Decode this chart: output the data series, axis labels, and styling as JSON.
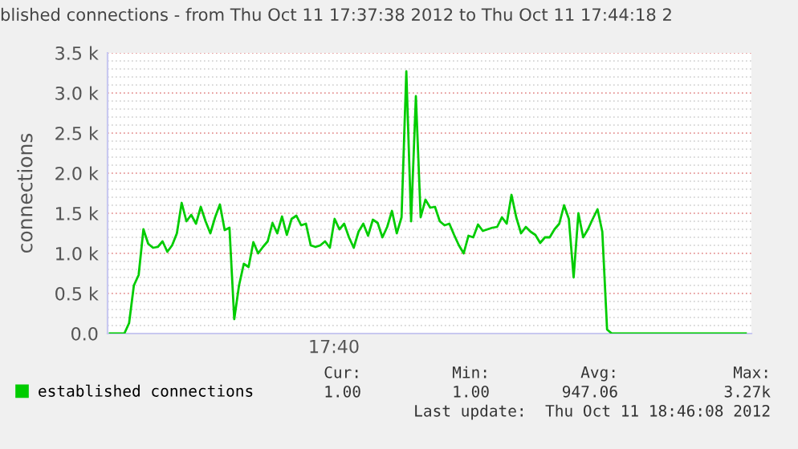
{
  "chart_data": {
    "type": "line",
    "title": "blished connections - from Thu Oct 11 17:37:38 2012 to Thu Oct 11 17:44:18 2",
    "ylabel": "connections",
    "ylim": [
      0,
      3500
    ],
    "yticks": [
      {
        "value": 0,
        "label": "0.0"
      },
      {
        "value": 100,
        "label": null
      },
      {
        "value": 200,
        "label": null
      },
      {
        "value": 300,
        "label": null
      },
      {
        "value": 400,
        "label": null
      },
      {
        "value": 500,
        "label": "0.5 k"
      },
      {
        "value": 600,
        "label": null
      },
      {
        "value": 700,
        "label": null
      },
      {
        "value": 800,
        "label": null
      },
      {
        "value": 900,
        "label": null
      },
      {
        "value": 1000,
        "label": "1.0 k"
      },
      {
        "value": 1100,
        "label": null
      },
      {
        "value": 1200,
        "label": null
      },
      {
        "value": 1300,
        "label": null
      },
      {
        "value": 1400,
        "label": null
      },
      {
        "value": 1500,
        "label": "1.5 k"
      },
      {
        "value": 1600,
        "label": null
      },
      {
        "value": 1700,
        "label": null
      },
      {
        "value": 1800,
        "label": null
      },
      {
        "value": 1900,
        "label": null
      },
      {
        "value": 2000,
        "label": "2.0 k"
      },
      {
        "value": 2100,
        "label": null
      },
      {
        "value": 2200,
        "label": null
      },
      {
        "value": 2300,
        "label": null
      },
      {
        "value": 2400,
        "label": null
      },
      {
        "value": 2500,
        "label": "2.5 k"
      },
      {
        "value": 2600,
        "label": null
      },
      {
        "value": 2700,
        "label": null
      },
      {
        "value": 2800,
        "label": null
      },
      {
        "value": 2900,
        "label": null
      },
      {
        "value": 3000,
        "label": "3.0 k"
      },
      {
        "value": 3100,
        "label": null
      },
      {
        "value": 3200,
        "label": null
      },
      {
        "value": 3300,
        "label": null
      },
      {
        "value": 3400,
        "label": null
      },
      {
        "value": 3500,
        "label": "3.5 k"
      }
    ],
    "grid": "y",
    "legend": "bottom",
    "marker": "none",
    "line_style": "solid",
    "categories": [
      null,
      null,
      null,
      null,
      null,
      null,
      null,
      null,
      null,
      null,
      null,
      null,
      null,
      null,
      null,
      null,
      null,
      null,
      null,
      null,
      null,
      null,
      null,
      null,
      null,
      null,
      null,
      null,
      null,
      null,
      null,
      null,
      null,
      null,
      null,
      null,
      null,
      null,
      null,
      null,
      null,
      null,
      null,
      null,
      null,
      null,
      null,
      null,
      null,
      null,
      null,
      null,
      null,
      null,
      null,
      null,
      null,
      null,
      null,
      null,
      null,
      null,
      null,
      null,
      null,
      null,
      null,
      null,
      null,
      null,
      null,
      null,
      null,
      null,
      null,
      null,
      null,
      null,
      null,
      null,
      null,
      null,
      null,
      null,
      null,
      null,
      null,
      null,
      null,
      null,
      null,
      null,
      null,
      null,
      null,
      null,
      null,
      null,
      null,
      null,
      null,
      null,
      null,
      null,
      null,
      null,
      null,
      null,
      null,
      null,
      null,
      null,
      null,
      null,
      null,
      null,
      null,
      null,
      null,
      null,
      null,
      null,
      null,
      null,
      null,
      null,
      null,
      null,
      null,
      null,
      null,
      null,
      null,
      null
    ],
    "series": [
      {
        "name": "established connections",
        "color": "#00cc00",
        "values": [
          0,
          0,
          0,
          0,
          130,
          600,
          730,
          1300,
          1120,
          1070,
          1080,
          1150,
          1020,
          1100,
          1250,
          1630,
          1400,
          1480,
          1370,
          1580,
          1400,
          1250,
          1450,
          1610,
          1290,
          1320,
          180,
          600,
          870,
          830,
          1140,
          1000,
          1080,
          1150,
          1380,
          1250,
          1460,
          1230,
          1430,
          1470,
          1350,
          1370,
          1100,
          1080,
          1100,
          1150,
          1070,
          1430,
          1300,
          1370,
          1200,
          1070,
          1270,
          1370,
          1220,
          1420,
          1380,
          1200,
          1330,
          1530,
          1250,
          1450,
          3270,
          1400,
          2960,
          1450,
          1670,
          1570,
          1580,
          1400,
          1350,
          1370,
          1230,
          1100,
          1000,
          1220,
          1200,
          1360,
          1280,
          1300,
          1320,
          1330,
          1450,
          1370,
          1730,
          1450,
          1250,
          1330,
          1270,
          1230,
          1130,
          1200,
          1200,
          1300,
          1370,
          1600,
          1430,
          700,
          1500,
          1200,
          1300,
          1430,
          1550,
          1270,
          50,
          0,
          0,
          0,
          0,
          0,
          0,
          0,
          0,
          0,
          0,
          0,
          0,
          0,
          0,
          0,
          0,
          0,
          0,
          0,
          0,
          0,
          0,
          0,
          0,
          0,
          0,
          0,
          0,
          0
        ]
      }
    ],
    "annotations": [
      "17:40",
      "Cur:",
      "Min:",
      "Avg:",
      "Max:",
      "1.00",
      "1.00",
      "947.06",
      "3.27k",
      "Last update:  Thu Oct 11 18:46:08 2012"
    ]
  }
}
